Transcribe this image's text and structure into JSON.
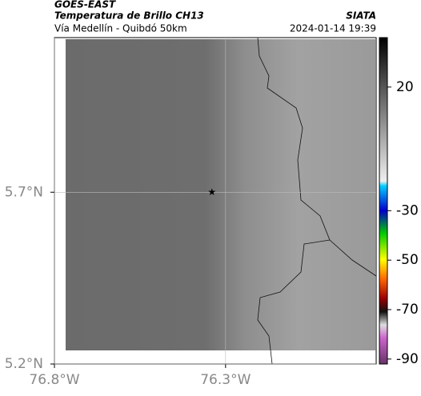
{
  "header": {
    "title": "GOES-EAST",
    "subtitle": "Temperatura de Brillo CH13",
    "region": "Vía Medellín - Quibdó 50km",
    "source": "SIATA",
    "timestamp": "2024-01-14 19:39"
  },
  "map": {
    "xlim": [
      -76.8,
      -75.86
    ],
    "ylim": [
      5.2,
      6.15
    ],
    "xticks": [
      {
        "value": -76.8,
        "label": "76.8°W"
      },
      {
        "value": -76.3,
        "label": "76.3°W"
      }
    ],
    "yticks": [
      {
        "value": 5.7,
        "label": "5.7°N"
      },
      {
        "value": 5.2,
        "label": "5.2°N"
      }
    ],
    "marker": {
      "lon": -76.34,
      "lat": 5.7
    }
  },
  "colorbar": {
    "clim": [
      -92,
      40
    ],
    "ticks": [
      20,
      -30,
      -50,
      -70,
      -90
    ]
  }
}
